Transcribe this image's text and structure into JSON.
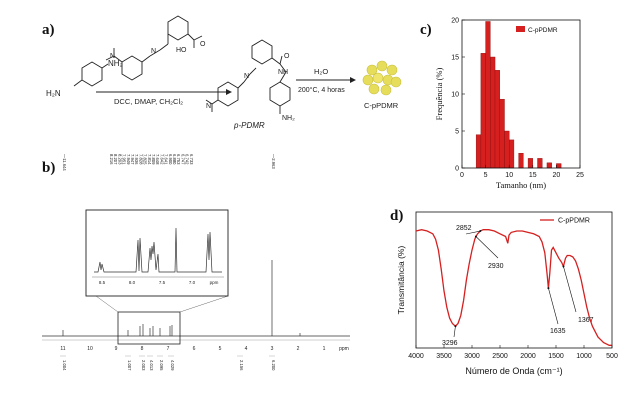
{
  "panels": {
    "a": {
      "letter": "a)",
      "reagent_nh2_left": "NH₂",
      "reagent_nh2_right": "H₂N",
      "reagent_top_oh": "HO",
      "reagent_top_o": "O",
      "conditions_1": "DCC, DMAP, CH₂Cl₂",
      "conditions_2_top": "H₂O",
      "conditions_2_bottom": "200°C, 4 horas",
      "product_label": "p-PDMR",
      "product_nh": "NH",
      "product_o": "O",
      "product_nh2": "NH₂",
      "nanoparticle_label": "C-pPDMR",
      "n_label": "N",
      "azo_n": "N"
    },
    "b": {
      "letter": "b)",
      "peak_labels_top": [
        "—11.644",
        "8.216",
        "8.207",
        "8.203",
        "7.951",
        "7.949",
        "7.947",
        "7.936",
        "7.828",
        "7.825",
        "7.814",
        "7.809",
        "7.648",
        "7.642",
        "7.641",
        "6.900",
        "6.880",
        "6.753",
        "6.747",
        "6.742",
        "6.733",
        "—2.963"
      ],
      "x_ticks": [
        "11",
        "10",
        "9",
        "8",
        "7",
        "6",
        "5",
        "4",
        "3",
        "2",
        "1",
        "ppm"
      ],
      "integrals": [
        "1.004",
        "1.007",
        "2.003",
        "4.013",
        "2.095",
        "4.029",
        "2.156",
        "6.200"
      ],
      "inset_ticks": [
        "8.5",
        "8.0",
        "7.5",
        "7.0",
        "ppm"
      ]
    },
    "c": {
      "letter": "c)"
    },
    "d": {
      "letter": "d)"
    }
  },
  "chart_data": [
    {
      "type": "bar",
      "panel": "c",
      "title": "",
      "xlabel": "Tamanho (nm)",
      "ylabel": "Frequência (%)",
      "legend": "C-pPDMR",
      "legend_position": "top-right",
      "xlim": [
        0,
        25
      ],
      "ylim": [
        0,
        20
      ],
      "x_ticks": [
        0,
        5,
        10,
        15,
        20,
        25
      ],
      "y_ticks": [
        0,
        5,
        10,
        15,
        20
      ],
      "bin_width": 1,
      "bin_starts": [
        3,
        4,
        5,
        6,
        7,
        8,
        9,
        10,
        12,
        14,
        16,
        18,
        20
      ],
      "values": [
        4.5,
        15.5,
        19.8,
        15.0,
        13.2,
        9.3,
        5.0,
        3.8,
        2.0,
        1.3,
        1.3,
        0.7,
        0.6
      ],
      "color": "#d62020"
    },
    {
      "type": "line",
      "panel": "d",
      "title": "",
      "xlabel": "Número de Onda (cm⁻¹)",
      "ylabel": "Transmitância (%)",
      "legend": "C-pPDMR",
      "legend_position": "top-right",
      "xlim": [
        4000,
        500
      ],
      "x_ticks": [
        4000,
        3500,
        3000,
        2500,
        2000,
        1500,
        1000,
        500
      ],
      "annotations": [
        "2852",
        "2930",
        "3296",
        "1635",
        "1367"
      ],
      "color": "#d62020",
      "x": [
        4000,
        3900,
        3800,
        3700,
        3650,
        3600,
        3550,
        3500,
        3450,
        3400,
        3350,
        3296,
        3250,
        3200,
        3150,
        3100,
        3050,
        3000,
        2950,
        2930,
        2900,
        2852,
        2800,
        2700,
        2600,
        2500,
        2400,
        2360,
        2340,
        2300,
        2200,
        2100,
        2000,
        1900,
        1800,
        1750,
        1700,
        1660,
        1635,
        1610,
        1580,
        1550,
        1500,
        1450,
        1400,
        1367,
        1330,
        1300,
        1250,
        1200,
        1150,
        1100,
        1050,
        1000,
        950,
        900,
        850,
        800,
        750,
        700,
        650,
        600,
        550,
        500
      ],
      "y": [
        86,
        87,
        86,
        84,
        80,
        72,
        58,
        42,
        30,
        22,
        18,
        16,
        18,
        24,
        35,
        50,
        62,
        72,
        80,
        82,
        84,
        86,
        87,
        87,
        86,
        84,
        82,
        77,
        83,
        85,
        86,
        86,
        85,
        84,
        82,
        78,
        70,
        55,
        44,
        55,
        72,
        74,
        70,
        66,
        63,
        60,
        66,
        68,
        68,
        67,
        64,
        58,
        50,
        40,
        30,
        22,
        16,
        12,
        8,
        6,
        4,
        3,
        2,
        2
      ]
    }
  ]
}
